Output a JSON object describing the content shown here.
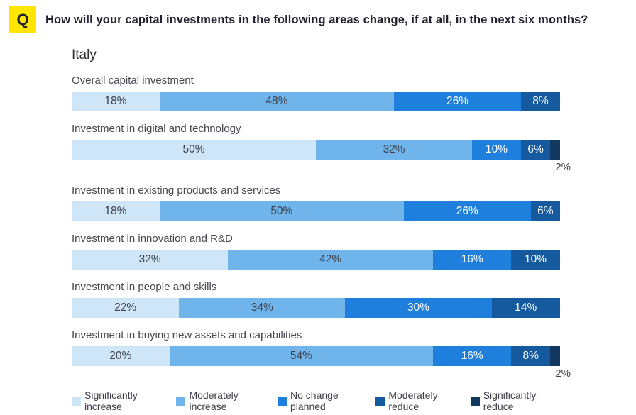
{
  "header": {
    "q_badge": "Q",
    "title": "How will your capital investments in the following areas change, if at all, in the next six months?"
  },
  "region": "Italy",
  "palette": {
    "q_badge_bg": "#ffe600",
    "title_text": "#23232f",
    "row_label_text": "#474752",
    "series_styles": {
      "significantly-increase": {
        "color": "#cfe6f8",
        "text": "#3f3f49"
      },
      "moderately-increase": {
        "color": "#6fb5eb",
        "text": "#3f3f49"
      },
      "no-change-planned": {
        "color": "#1e80dc",
        "text": "#ffffff"
      },
      "moderately-reduce": {
        "color": "#15599f",
        "text": "#ffffff"
      },
      "significantly-reduce": {
        "color": "#123a61",
        "text": "#ffffff"
      }
    }
  },
  "legend": [
    {
      "label": "Significantly increase",
      "series": "significantly-increase"
    },
    {
      "label": "Moderately increase",
      "series": "moderately-increase"
    },
    {
      "label": "No change planned",
      "series": "no-change-planned"
    },
    {
      "label": "Moderately reduce",
      "series": "moderately-reduce"
    },
    {
      "label": "Significantly reduce",
      "series": "significantly-reduce"
    }
  ],
  "rows": [
    {
      "label": "Overall capital investment",
      "segments": [
        {
          "label": "18%",
          "value": 18,
          "series": "significantly-increase"
        },
        {
          "label": "48%",
          "value": 48,
          "series": "moderately-increase"
        },
        {
          "label": "26%",
          "value": 26,
          "series": "no-change-planned"
        },
        {
          "label": "8%",
          "value": 8,
          "series": "moderately-reduce"
        }
      ]
    },
    {
      "label": "Investment in digital and technology",
      "segments": [
        {
          "label": "50%",
          "value": 50,
          "series": "significantly-increase"
        },
        {
          "label": "32%",
          "value": 32,
          "series": "moderately-increase"
        },
        {
          "label": "10%",
          "value": 10,
          "series": "no-change-planned"
        },
        {
          "label": "6%",
          "value": 6,
          "series": "moderately-reduce"
        },
        {
          "label": "2%",
          "value": 2,
          "series": "significantly-reduce",
          "label_position": "below"
        }
      ]
    },
    {
      "label": "Investment in existing products and services",
      "segments": [
        {
          "label": "18%",
          "value": 18,
          "series": "significantly-increase"
        },
        {
          "label": "50%",
          "value": 50,
          "series": "moderately-increase"
        },
        {
          "label": "26%",
          "value": 26,
          "series": "no-change-planned"
        },
        {
          "label": "6%",
          "value": 6,
          "series": "moderately-reduce"
        }
      ]
    },
    {
      "label": "Investment in innovation and R&D",
      "segments": [
        {
          "label": "32%",
          "value": 32,
          "series": "significantly-increase"
        },
        {
          "label": "42%",
          "value": 42,
          "series": "moderately-increase"
        },
        {
          "label": "16%",
          "value": 16,
          "series": "no-change-planned"
        },
        {
          "label": "10%",
          "value": 10,
          "series": "moderately-reduce"
        }
      ]
    },
    {
      "label": "Investment in people and skills",
      "segments": [
        {
          "label": "22%",
          "value": 22,
          "series": "significantly-increase"
        },
        {
          "label": "34%",
          "value": 34,
          "series": "moderately-increase"
        },
        {
          "label": "30%",
          "value": 30,
          "series": "no-change-planned"
        },
        {
          "label": "14%",
          "value": 14,
          "series": "moderately-reduce"
        }
      ]
    },
    {
      "label": "Investment in buying new assets and capabilities",
      "segments": [
        {
          "label": "20%",
          "value": 20,
          "series": "significantly-increase"
        },
        {
          "label": "54%",
          "value": 54,
          "series": "moderately-increase"
        },
        {
          "label": "16%",
          "value": 16,
          "series": "no-change-planned"
        },
        {
          "label": "8%",
          "value": 8,
          "series": "moderately-reduce"
        },
        {
          "label": "2%",
          "value": 2,
          "series": "significantly-reduce",
          "label_position": "below"
        }
      ]
    }
  ],
  "chart_data": {
    "type": "bar",
    "stacked": true,
    "orientation": "horizontal",
    "title": "How will your capital investments in the following areas change, if at all, in the next six months?",
    "subtitle": "Italy",
    "unit": "%",
    "xlim": [
      0,
      100
    ],
    "grid": false,
    "legend_position": "bottom",
    "categories": [
      "Overall capital investment",
      "Investment in digital and technology",
      "Investment in existing products and services",
      "Investment in innovation and R&D",
      "Investment in people and skills",
      "Investment in buying new assets and capabilities"
    ],
    "series": [
      {
        "name": "Significantly increase",
        "values": [
          18,
          50,
          18,
          32,
          22,
          20
        ]
      },
      {
        "name": "Moderately increase",
        "values": [
          48,
          32,
          50,
          42,
          34,
          54
        ]
      },
      {
        "name": "No change planned",
        "values": [
          26,
          10,
          26,
          16,
          30,
          16
        ]
      },
      {
        "name": "Moderately reduce",
        "values": [
          8,
          6,
          6,
          10,
          14,
          8
        ]
      },
      {
        "name": "Significantly reduce",
        "values": [
          0,
          2,
          0,
          0,
          0,
          2
        ]
      }
    ]
  }
}
